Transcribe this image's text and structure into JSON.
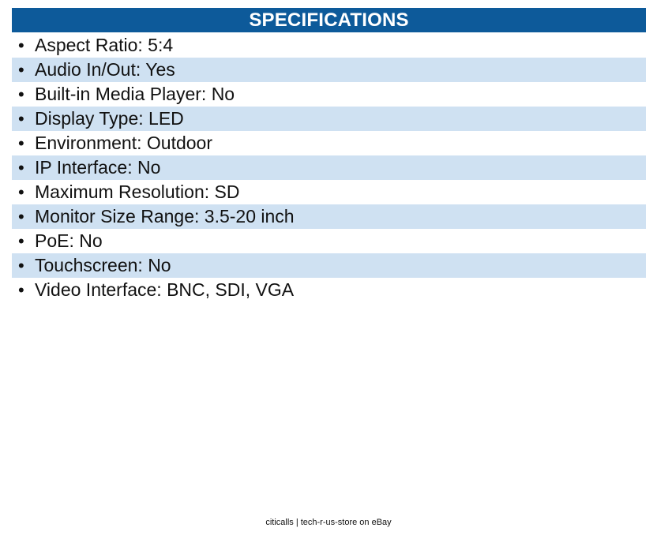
{
  "header": {
    "title": "SPECIFICATIONS"
  },
  "specs": [
    "Aspect Ratio: 5:4",
    "Audio In/Out: Yes",
    "Built-in Media Player: No",
    "Display Type: LED",
    "Environment: Outdoor",
    "IP Interface: No",
    "Maximum Resolution: SD",
    "Monitor Size Range: 3.5-20 inch",
    "PoE: No",
    "Touchscreen: No",
    "Video Interface: BNC, SDI, VGA"
  ],
  "bullet": "•",
  "footer": {
    "text": "citicalls | tech-r-us-store on eBay"
  },
  "colors": {
    "header_bg": "#0d5a9a",
    "alt_row_bg": "#cfe1f2"
  }
}
